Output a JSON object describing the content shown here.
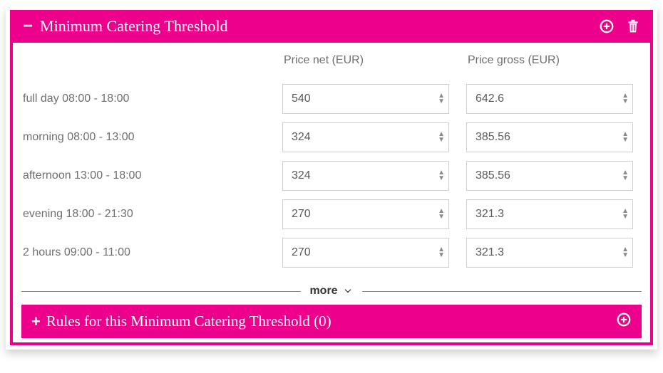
{
  "colors": {
    "accent": "#ec008c",
    "text_muted": "#6f6f6f",
    "border": "#cfcfcf"
  },
  "panel": {
    "title": "Minimum Catering Threshold",
    "columns": {
      "net": "Price net (EUR)",
      "gross": "Price gross (EUR)"
    },
    "rows": [
      {
        "label": "full day 08:00 - 18:00",
        "net": "540",
        "gross": "642.6"
      },
      {
        "label": "morning 08:00 - 13:00",
        "net": "324",
        "gross": "385.56"
      },
      {
        "label": "afternoon 13:00 - 18:00",
        "net": "324",
        "gross": "385.56"
      },
      {
        "label": "evening 18:00 - 21:30",
        "net": "270",
        "gross": "321.3"
      },
      {
        "label": "2 hours 09:00 - 11:00",
        "net": "270",
        "gross": "321.3"
      }
    ],
    "more_label": "more"
  },
  "rules": {
    "title": "Rules for this Minimum Catering Threshold (0)"
  }
}
